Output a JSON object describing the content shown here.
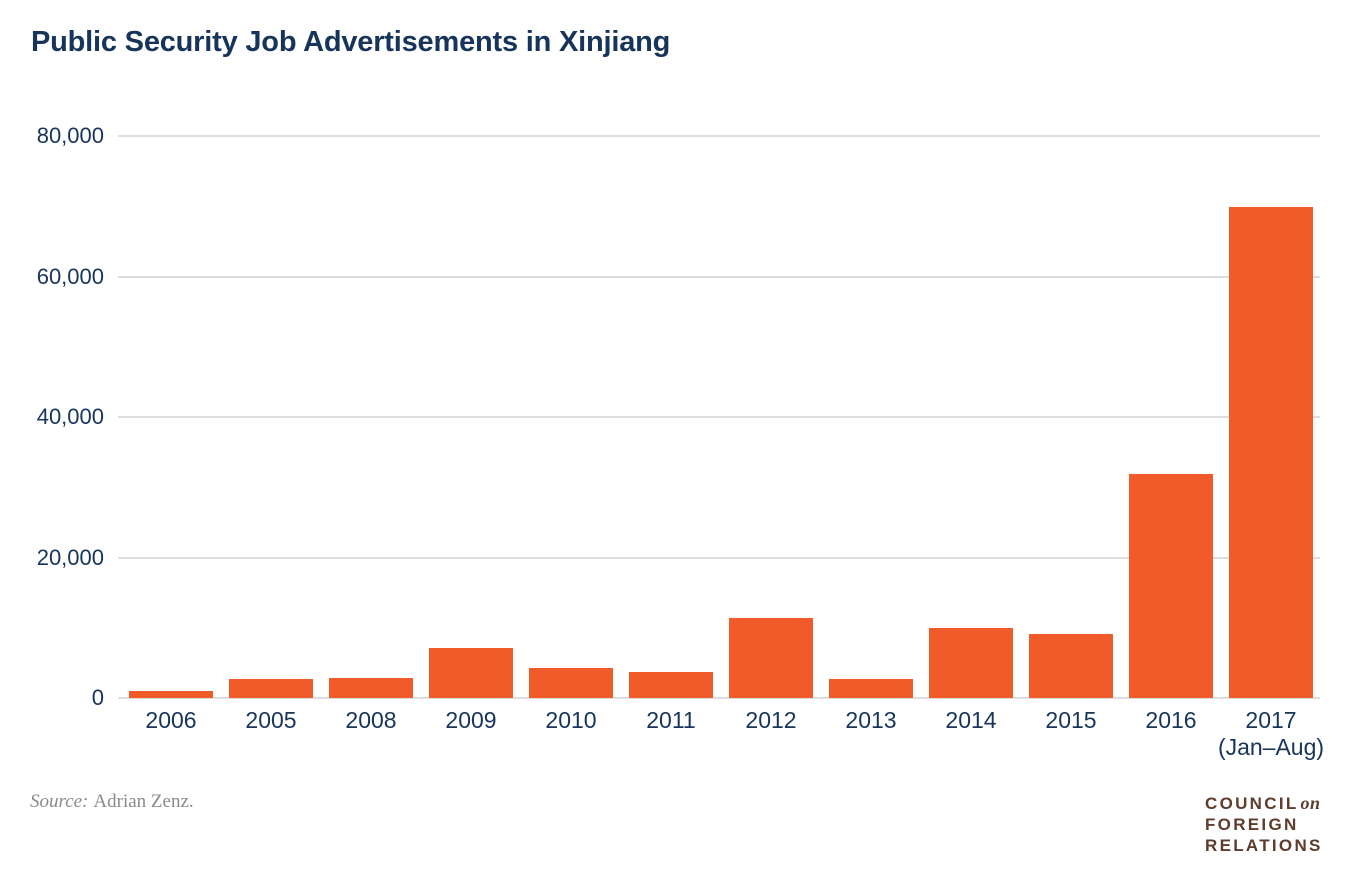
{
  "title": "Public Security Job Advertisements in Xinjiang",
  "source": {
    "prefix": "Source:",
    "text": "Adrian Zenz."
  },
  "logo": {
    "line1": "COUNCIL",
    "line1_suffix": "on",
    "line2": "FOREIGN",
    "line3": "RELATIONS"
  },
  "colors": {
    "bar": "#F15B2A",
    "navy_text": "#17345A",
    "gridline": "#DEDEDE",
    "source_gray": "#8A8A8A",
    "logo_brown": "#5D3C2C",
    "background": "#FFFFFF"
  },
  "chart_data": {
    "type": "bar",
    "title": "Public Security Job Advertisements in Xinjiang",
    "categories": [
      {
        "label": "2006",
        "sublabel": ""
      },
      {
        "label": "2005",
        "sublabel": ""
      },
      {
        "label": "2008",
        "sublabel": ""
      },
      {
        "label": "2009",
        "sublabel": ""
      },
      {
        "label": "2010",
        "sublabel": ""
      },
      {
        "label": "2011",
        "sublabel": ""
      },
      {
        "label": "2012",
        "sublabel": ""
      },
      {
        "label": "2013",
        "sublabel": ""
      },
      {
        "label": "2014",
        "sublabel": ""
      },
      {
        "label": "2015",
        "sublabel": ""
      },
      {
        "label": "2016",
        "sublabel": ""
      },
      {
        "label": "2017",
        "sublabel": "(Jan–Aug)"
      }
    ],
    "values": [
      1000,
      2700,
      2900,
      7100,
      4300,
      3700,
      11400,
      2700,
      9900,
      9100,
      31900,
      69900
    ],
    "xlabel": "",
    "ylabel": "",
    "ylim": [
      0,
      80000
    ],
    "yticks": [
      0,
      20000,
      40000,
      60000,
      80000
    ],
    "ytick_labels": [
      "0",
      "20,000",
      "40,000",
      "60,000",
      "80,000"
    ],
    "grid": true,
    "legend": false,
    "bar_color": "#F15B2A"
  }
}
